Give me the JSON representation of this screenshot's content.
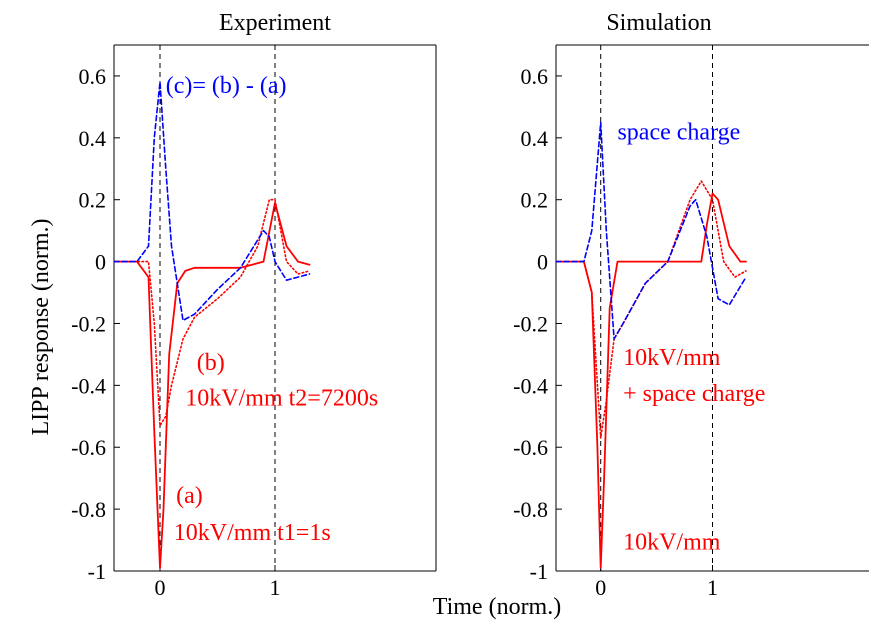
{
  "figure": {
    "ylabel": "LIPP response (norm.)",
    "xlabel": "Time (norm.)"
  },
  "colors": {
    "red": "#ff0000",
    "blue": "#0000ff"
  },
  "chart_data": [
    {
      "type": "line",
      "title": "Experiment",
      "xlabel": "Time (norm.)",
      "ylabel": "LIPP response (norm.)",
      "xlim": [
        -0.4,
        2.4
      ],
      "ylim": [
        -1,
        0.7
      ],
      "xticks": [
        0,
        1
      ],
      "yticks": [
        -1,
        -0.8,
        -0.6,
        -0.4,
        -0.2,
        0,
        0.2,
        0.4,
        0.6
      ],
      "ytick_labels": [
        "-1",
        "-0.8",
        "-0.6",
        "-0.4",
        "-0.2",
        "0",
        "0.2",
        "0.4",
        "0.6"
      ],
      "xtick_labels": [
        "0",
        "1"
      ],
      "vlines": [
        0,
        1
      ],
      "grid": false,
      "series": [
        {
          "key": "a",
          "color": "red",
          "style": "solid",
          "x": [
            -0.4,
            -0.2,
            -0.1,
            -0.05,
            0,
            0.03,
            0.08,
            0.15,
            0.22,
            0.3,
            0.5,
            0.7,
            0.9,
            1.0,
            1.1,
            1.2,
            1.3
          ],
          "y": [
            0.0,
            0.0,
            -0.05,
            -0.55,
            -0.99,
            -0.8,
            -0.3,
            -0.07,
            -0.03,
            -0.02,
            -0.02,
            -0.02,
            0.0,
            0.19,
            0.05,
            0.0,
            -0.01
          ]
        },
        {
          "key": "b",
          "color": "red",
          "style": "dotted",
          "x": [
            -0.4,
            -0.1,
            -0.05,
            0,
            0.05,
            0.1,
            0.2,
            0.3,
            0.5,
            0.7,
            0.85,
            0.95,
            1.0,
            1.1,
            1.2,
            1.3
          ],
          "y": [
            0.0,
            0.0,
            -0.2,
            -0.53,
            -0.5,
            -0.4,
            -0.25,
            -0.18,
            -0.12,
            -0.05,
            0.05,
            0.2,
            0.2,
            0.0,
            -0.04,
            -0.03
          ]
        },
        {
          "key": "c",
          "color": "blue",
          "style": "dashed",
          "x": [
            -0.4,
            -0.2,
            -0.1,
            -0.05,
            0,
            0.05,
            0.1,
            0.2,
            0.3,
            0.5,
            0.7,
            0.9,
            0.95,
            1.0,
            1.1,
            1.2,
            1.3
          ],
          "y": [
            0.0,
            0.0,
            0.05,
            0.4,
            0.58,
            0.3,
            0.05,
            -0.19,
            -0.17,
            -0.09,
            -0.02,
            0.1,
            0.08,
            0.0,
            -0.06,
            -0.05,
            -0.04
          ]
        }
      ],
      "annotations": [
        {
          "text": "(c)= (b) - (a)",
          "color": "blue",
          "x": 0.05,
          "y": 0.545
        },
        {
          "text": "(b)",
          "color": "red",
          "x": 0.32,
          "y": -0.35
        },
        {
          "text": "10kV/mm t2=7200s",
          "color": "red",
          "x": 0.22,
          "y": -0.465
        },
        {
          "text": "(a)",
          "color": "red",
          "x": 0.14,
          "y": -0.78
        },
        {
          "text": "10kV/mm t1=1s",
          "color": "red",
          "x": 0.12,
          "y": -0.9
        }
      ]
    },
    {
      "type": "line",
      "title": "Simulation",
      "xlim": [
        -0.4,
        2.4
      ],
      "ylim": [
        -1,
        0.7
      ],
      "xticks": [
        0,
        1
      ],
      "yticks": [
        -1,
        -0.8,
        -0.6,
        -0.4,
        -0.2,
        0,
        0.2,
        0.4,
        0.6
      ],
      "ytick_labels": [
        "-1",
        "-0.8",
        "-0.6",
        "-0.4",
        "-0.2",
        "0",
        "0.2",
        "0.4",
        "0.6"
      ],
      "xtick_labels": [
        "0",
        "1"
      ],
      "vlines": [
        0,
        1
      ],
      "grid": false,
      "series": [
        {
          "key": "10kV/mm",
          "color": "red",
          "style": "solid",
          "x": [
            -0.4,
            -0.15,
            -0.08,
            -0.03,
            0,
            0.03,
            0.08,
            0.15,
            0.3,
            0.7,
            0.9,
            0.95,
            1.0,
            1.05,
            1.15,
            1.25,
            1.3
          ],
          "y": [
            0.0,
            0.0,
            -0.1,
            -0.6,
            -0.99,
            -0.7,
            -0.15,
            0.0,
            0.0,
            0.0,
            0.0,
            0.12,
            0.22,
            0.2,
            0.05,
            0.0,
            0.0
          ]
        },
        {
          "key": "10kV/mm + space charge",
          "color": "red",
          "style": "dotted",
          "x": [
            -0.4,
            -0.15,
            -0.08,
            0,
            0.05,
            0.12,
            0.2,
            0.4,
            0.6,
            0.8,
            0.9,
            1.0,
            1.1,
            1.2,
            1.3
          ],
          "y": [
            0.0,
            0.0,
            -0.1,
            -0.57,
            -0.45,
            -0.25,
            -0.2,
            -0.07,
            0.0,
            0.2,
            0.26,
            0.2,
            0.0,
            -0.05,
            -0.03
          ]
        },
        {
          "key": "space charge",
          "color": "blue",
          "style": "dashed",
          "x": [
            -0.4,
            -0.15,
            -0.08,
            0,
            0.05,
            0.12,
            0.2,
            0.4,
            0.6,
            0.8,
            0.85,
            0.95,
            1.05,
            1.15,
            1.3
          ],
          "y": [
            0.0,
            0.0,
            0.1,
            0.45,
            0.1,
            -0.25,
            -0.2,
            -0.07,
            0.0,
            0.18,
            0.2,
            0.08,
            -0.12,
            -0.14,
            -0.05
          ]
        }
      ],
      "annotations": [
        {
          "text": "space charge",
          "color": "blue",
          "x": 0.15,
          "y": 0.395
        },
        {
          "text": "10kV/mm",
          "color": "red",
          "x": 0.2,
          "y": -0.335
        },
        {
          "text": "+ space charge",
          "color": "red",
          "x": 0.2,
          "y": -0.45
        },
        {
          "text": "10kV/mm",
          "color": "red",
          "x": 0.2,
          "y": -0.93
        }
      ]
    }
  ]
}
